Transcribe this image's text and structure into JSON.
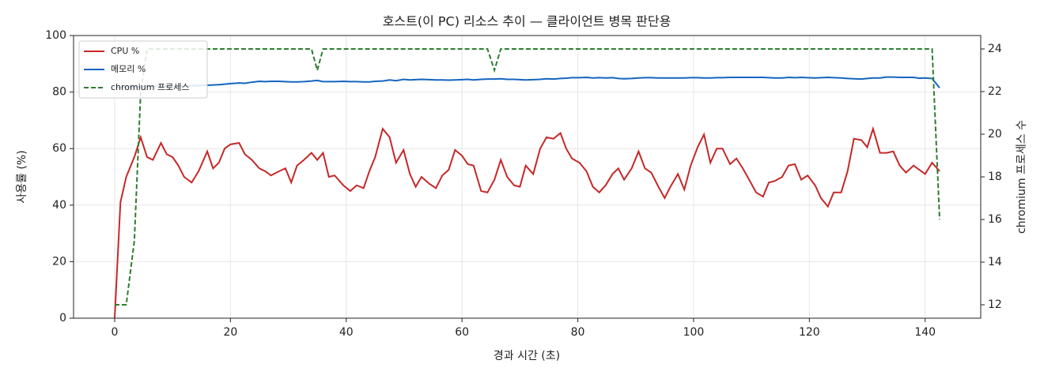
{
  "chart_data": {
    "type": "line",
    "title": "호스트(이 PC) 리소스 추이 — 클라이언트 병목 판단용",
    "xlabel": "경과 시간 (초)",
    "ylabel": "사용률 (%)",
    "y2label": "chromium 프로세스 수",
    "x": [
      0,
      1,
      2,
      3.4,
      4.5,
      5.6,
      6.6,
      8,
      9,
      10,
      11,
      12,
      13.3,
      14.5,
      16,
      17,
      18,
      19,
      20,
      21.5,
      22.5,
      23.7,
      25,
      26,
      27,
      28.4,
      29.5,
      30.5,
      31.5,
      32.7,
      34,
      35,
      36,
      37,
      38,
      39.5,
      40.7,
      41.8,
      43,
      44,
      45,
      46.3,
      47.5,
      48.6,
      49.9,
      51,
      52,
      53,
      54.4,
      55.5,
      56.6,
      57.7,
      58.8,
      60,
      61,
      62,
      63.3,
      64.4,
      65.6,
      66.7,
      67.8,
      69,
      70,
      71,
      72.3,
      73.5,
      74.6,
      75.8,
      77,
      78,
      79,
      80.3,
      81.5,
      82.6,
      83.7,
      84.8,
      86,
      87,
      88,
      89.3,
      90.5,
      91.6,
      92.7,
      93.8,
      95,
      96,
      97.3,
      98.4,
      99.5,
      100.7,
      101.8,
      102.9,
      104,
      105,
      106.3,
      107.4,
      108.5,
      109.6,
      110.8,
      112,
      113,
      114,
      115.3,
      116.4,
      117.5,
      118.6,
      119.7,
      121,
      122,
      123.2,
      124.2,
      125.5,
      126.6,
      127.7,
      129,
      130,
      131,
      132.2,
      133.3,
      134.5,
      135.6,
      136.7,
      138,
      139,
      140,
      141.2,
      142.5
    ],
    "series": [
      {
        "name": "CPU %",
        "color": "#c62828",
        "linestyle": "solid",
        "values": [
          0,
          41,
          50,
          57,
          64,
          57,
          56,
          62,
          58,
          57,
          54,
          50,
          48,
          52,
          59,
          53,
          55,
          60,
          61.5,
          62,
          58,
          56,
          53,
          52,
          50.5,
          52,
          53,
          48,
          54,
          56,
          58.5,
          56,
          58.5,
          50,
          50.5,
          47,
          45,
          47,
          46,
          52,
          57,
          67,
          64,
          55,
          59.5,
          51,
          46.5,
          50,
          47.5,
          46,
          50.5,
          52.5,
          59.5,
          57.5,
          54.5,
          54,
          45,
          44.5,
          49,
          56,
          50,
          47,
          46.5,
          54,
          51,
          60,
          64,
          63.5,
          65.5,
          60,
          56.5,
          55,
          52,
          46.5,
          44.5,
          47,
          51,
          53,
          49,
          53,
          59,
          53,
          51.5,
          47,
          42.5,
          46.5,
          51,
          45.5,
          54,
          60.5,
          65,
          55,
          60,
          60,
          54.5,
          56.5,
          53,
          49,
          44.5,
          43,
          48,
          48.5,
          50,
          54,
          54.5,
          49,
          50.5,
          47,
          42.5,
          39.5,
          44.5,
          44.5,
          52,
          63.5,
          63,
          60.5,
          67,
          58.5,
          58.5,
          59,
          54,
          51.5,
          54,
          52.5,
          51,
          55,
          52
        ]
      },
      {
        "name": "메모리 %",
        "color": "#1565c0",
        "linestyle": "solid",
        "values": [
          81.5,
          81.6,
          81.7,
          81.8,
          81.9,
          82,
          82,
          82.1,
          82.1,
          82.1,
          82.2,
          82.2,
          82.2,
          82.3,
          82.4,
          82.5,
          82.6,
          82.8,
          83,
          83.2,
          83.1,
          83.5,
          83.8,
          83.7,
          83.8,
          83.8,
          83.7,
          83.6,
          83.6,
          83.7,
          83.9,
          84.1,
          83.7,
          83.7,
          83.7,
          83.8,
          83.7,
          83.7,
          83.6,
          83.6,
          83.8,
          83.9,
          84.3,
          84,
          84.5,
          84.3,
          84.4,
          84.5,
          84.4,
          84.3,
          84.3,
          84.2,
          84.3,
          84.4,
          84.5,
          84.3,
          84.5,
          84.6,
          84.6,
          84.7,
          84.5,
          84.5,
          84.4,
          84.3,
          84.4,
          84.5,
          84.7,
          84.6,
          84.8,
          84.9,
          85.1,
          85.1,
          85.2,
          85,
          85.1,
          85,
          85.1,
          84.8,
          84.7,
          84.8,
          85,
          85.1,
          85.1,
          85,
          85,
          85,
          85,
          85,
          85.1,
          85.1,
          85,
          85,
          85.1,
          85.1,
          85.2,
          85.2,
          85.2,
          85.2,
          85.2,
          85.2,
          85.1,
          85,
          85,
          85.2,
          85.1,
          85.2,
          85.1,
          85,
          85.1,
          85.2,
          85.1,
          85,
          84.8,
          84.7,
          84.6,
          84.8,
          85,
          85,
          85.3,
          85.3,
          85.2,
          85.2,
          85.2,
          84.9,
          85,
          84.8,
          81.5
        ]
      },
      {
        "name": "chromium 프로세스",
        "color": "#2e7d32",
        "linestyle": "dashed",
        "axis": "y2",
        "values": [
          12,
          12,
          12,
          15,
          22,
          24,
          24,
          24,
          24,
          24,
          24,
          24,
          24,
          24,
          24,
          24,
          24,
          24,
          24,
          24,
          24,
          24,
          24,
          24,
          24,
          24,
          24,
          24,
          24,
          24,
          24,
          23,
          24,
          24,
          24,
          24,
          24,
          24,
          24,
          24,
          24,
          24,
          24,
          24,
          24,
          24,
          24,
          24,
          24,
          24,
          24,
          24,
          24,
          24,
          24,
          24,
          24,
          24,
          23,
          24,
          24,
          24,
          24,
          24,
          24,
          24,
          24,
          24,
          24,
          24,
          24,
          24,
          24,
          24,
          24,
          24,
          24,
          24,
          24,
          24,
          24,
          24,
          24,
          24,
          24,
          24,
          24,
          24,
          24,
          24,
          24,
          24,
          24,
          24,
          24,
          24,
          24,
          24,
          24,
          24,
          24,
          24,
          24,
          24,
          24,
          24,
          24,
          24,
          24,
          24,
          24,
          24,
          24,
          24,
          24,
          24,
          24,
          24,
          24,
          24,
          24,
          24,
          24,
          24,
          24,
          24,
          16
        ]
      }
    ],
    "xlim": [
      -7.1,
      149.6
    ],
    "xticks": [
      0,
      20,
      40,
      60,
      80,
      100,
      120,
      140
    ],
    "ylim": [
      0,
      100
    ],
    "yticks": [
      0,
      20,
      40,
      60,
      80,
      100
    ],
    "y2lim": [
      11.37,
      24.63
    ],
    "y2ticks": [
      12,
      14,
      16,
      18,
      20,
      22,
      24
    ],
    "grid": true,
    "legend": "upper left"
  }
}
